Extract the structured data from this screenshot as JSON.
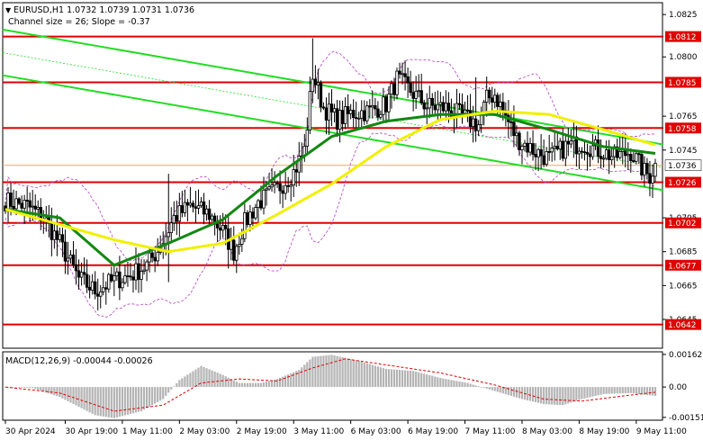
{
  "header": {
    "symbol_line": "EURUSD,H1  1.0732 1.0739 1.0731 1.0736",
    "channel_line": "Channel size = 26; Slope = -0.37"
  },
  "macd": {
    "label": "MACD(12,26,9) -0.00044 -0.00026",
    "axis_ticks": [
      "0.00162",
      "0.00",
      "-0.00151"
    ]
  },
  "price_axis_ticks": [
    "1.0825",
    "1.0800",
    "1.0765",
    "1.0745",
    "1.0705",
    "1.0685",
    "1.0665",
    "1.0645"
  ],
  "current_price": "1.0736",
  "time_axis_ticks": [
    "30 Apr 2024",
    "30 Apr 19:00",
    "1 May 11:00",
    "2 May 03:00",
    "2 May 19:00",
    "3 May 11:00",
    "6 May 03:00",
    "6 May 19:00",
    "7 May 11:00",
    "8 May 03:00",
    "8 May 19:00",
    "9 May 11:00"
  ],
  "colors": {
    "level_line": "#e00000",
    "channel_line": "#22dd22",
    "ma_yellow": "#f0f000",
    "ma_green": "#118811",
    "candles": "#000000",
    "macd_hist": "#b4b4b4",
    "macd_signal": "#e00000",
    "bollinger": "#b040c0",
    "current_price_line": "#f4a460"
  },
  "chart_data": [
    {
      "type": "candlestick",
      "symbol": "EURUSD",
      "timeframe": "H1",
      "ylim": [
        1.0628,
        1.0832
      ],
      "levels": [
        1.0812,
        1.0785,
        1.0758,
        1.0726,
        1.0702,
        1.0677,
        1.0642
      ],
      "current_price": 1.0736,
      "channel": {
        "upper": [
          [
            0,
            1.0816
          ],
          [
            246,
            1.0748
          ]
        ],
        "lower": [
          [
            0,
            1.0789
          ],
          [
            246,
            1.0721
          ]
        ]
      },
      "close_waypoints": [
        [
          0,
          1.0715
        ],
        [
          8,
          1.0712
        ],
        [
          14,
          1.0705
        ],
        [
          20,
          1.069
        ],
        [
          27,
          1.0669
        ],
        [
          33,
          1.0662
        ],
        [
          40,
          1.0668
        ],
        [
          46,
          1.0671
        ],
        [
          52,
          1.0677
        ],
        [
          57,
          1.0688
        ],
        [
          62,
          1.0705
        ],
        [
          68,
          1.0712
        ],
        [
          75,
          1.0707
        ],
        [
          80,
          1.0697
        ],
        [
          84,
          1.0685
        ],
        [
          88,
          1.0702
        ],
        [
          93,
          1.0714
        ],
        [
          100,
          1.0722
        ],
        [
          106,
          1.0732
        ],
        [
          110,
          1.0745
        ],
        [
          113,
          1.079
        ],
        [
          117,
          1.077
        ],
        [
          122,
          1.0763
        ],
        [
          128,
          1.0767
        ],
        [
          134,
          1.0768
        ],
        [
          140,
          1.0772
        ],
        [
          144,
          1.0787
        ],
        [
          149,
          1.078
        ],
        [
          155,
          1.0771
        ],
        [
          162,
          1.077
        ],
        [
          168,
          1.0765
        ],
        [
          174,
          1.076
        ],
        [
          177,
          1.0775
        ],
        [
          180,
          1.0778
        ],
        [
          183,
          1.0768
        ],
        [
          188,
          1.0752
        ],
        [
          194,
          1.0745
        ],
        [
          200,
          1.074
        ],
        [
          206,
          1.0747
        ],
        [
          212,
          1.0749
        ],
        [
          218,
          1.0745
        ],
        [
          224,
          1.0741
        ],
        [
          230,
          1.0744
        ],
        [
          235,
          1.0732
        ],
        [
          237,
          1.073
        ],
        [
          239,
          1.0736
        ]
      ],
      "series": [
        {
          "name": "MA green",
          "points": [
            [
              0,
              1.071
            ],
            [
              20,
              1.0705
            ],
            [
              40,
              1.0677
            ],
            [
              60,
              1.069
            ],
            [
              80,
              1.0704
            ],
            [
              100,
              1.073
            ],
            [
              120,
              1.0753
            ],
            [
              140,
              1.0762
            ],
            [
              160,
              1.0766
            ],
            [
              180,
              1.0766
            ],
            [
              200,
              1.0757
            ],
            [
              220,
              1.0747
            ],
            [
              239,
              1.0743
            ]
          ]
        },
        {
          "name": "MA yellow",
          "points": [
            [
              0,
              1.071
            ],
            [
              20,
              1.0701
            ],
            [
              40,
              1.0692
            ],
            [
              60,
              1.0685
            ],
            [
              80,
              1.069
            ],
            [
              100,
              1.0707
            ],
            [
              120,
              1.0725
            ],
            [
              140,
              1.0747
            ],
            [
              160,
              1.0763
            ],
            [
              180,
              1.0768
            ],
            [
              200,
              1.0766
            ],
            [
              220,
              1.0757
            ],
            [
              239,
              1.0748
            ]
          ]
        }
      ]
    },
    {
      "type": "histogram",
      "ylim": [
        -0.00165,
        0.00175
      ],
      "macd_waypoints": [
        [
          0,
          0.0
        ],
        [
          10,
          -5e-05
        ],
        [
          20,
          -0.0005
        ],
        [
          33,
          -0.0014
        ],
        [
          40,
          -0.00155
        ],
        [
          50,
          -0.0012
        ],
        [
          58,
          -0.0006
        ],
        [
          64,
          0.00035
        ],
        [
          72,
          0.00105
        ],
        [
          80,
          0.0006
        ],
        [
          86,
          0.0002
        ],
        [
          94,
          0.0002
        ],
        [
          100,
          0.0004
        ],
        [
          108,
          0.00085
        ],
        [
          113,
          0.0015
        ],
        [
          120,
          0.0016
        ],
        [
          130,
          0.0013
        ],
        [
          140,
          0.0009
        ],
        [
          150,
          0.0008
        ],
        [
          160,
          0.00045
        ],
        [
          170,
          0.0002
        ],
        [
          180,
          -0.0002
        ],
        [
          190,
          -0.0006
        ],
        [
          198,
          -0.00085
        ],
        [
          205,
          -0.0009
        ],
        [
          212,
          -0.0006
        ],
        [
          220,
          -0.00035
        ],
        [
          230,
          -0.0003
        ],
        [
          236,
          -0.0004
        ],
        [
          239,
          -0.00044
        ]
      ],
      "signal_waypoints": [
        [
          0,
          0.0
        ],
        [
          20,
          -0.0003
        ],
        [
          40,
          -0.0012
        ],
        [
          58,
          -0.0009
        ],
        [
          72,
          0.0002
        ],
        [
          86,
          0.0004
        ],
        [
          100,
          0.0003
        ],
        [
          113,
          0.00095
        ],
        [
          125,
          0.0014
        ],
        [
          140,
          0.0011
        ],
        [
          160,
          0.0007
        ],
        [
          180,
          0.0001
        ],
        [
          198,
          -0.0006
        ],
        [
          212,
          -0.0007
        ],
        [
          230,
          -0.0004
        ],
        [
          239,
          -0.00026
        ]
      ]
    }
  ]
}
